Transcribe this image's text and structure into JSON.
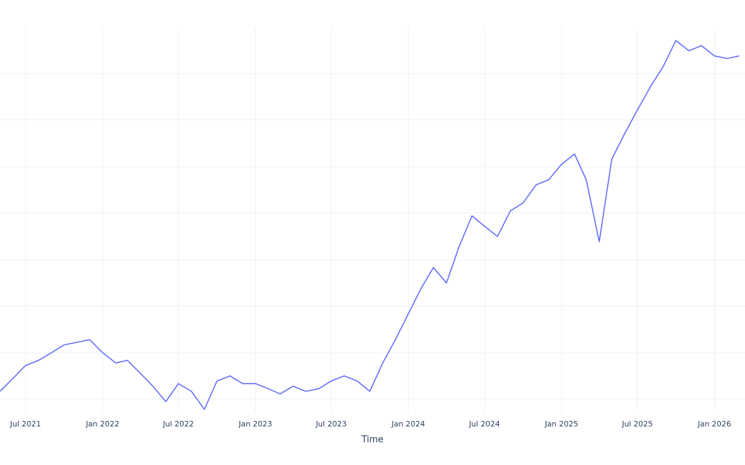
{
  "chart_data": {
    "type": "line",
    "title": "",
    "xlabel": "Time",
    "ylabel": "",
    "grid": true,
    "line_color": "#636efa",
    "x_ticks": [
      "Jul 2021",
      "Jan 2022",
      "Jul 2022",
      "Jan 2023",
      "Jul 2023",
      "Jan 2024",
      "Jul 2024",
      "Jan 2025",
      "Jul 2025",
      "Jan 2026"
    ],
    "x_range": [
      "2021-05-01",
      "2026-03-15"
    ],
    "series": [
      {
        "x": [
          "2021-05-01",
          "2021-06-01",
          "2021-07-01",
          "2021-08-01",
          "2021-09-01",
          "2021-10-01",
          "2021-11-01",
          "2021-12-01",
          "2022-01-01",
          "2022-02-01",
          "2022-03-01",
          "2022-04-01",
          "2022-05-01",
          "2022-06-01",
          "2022-07-01",
          "2022-08-01",
          "2022-09-01",
          "2022-10-01",
          "2022-11-01",
          "2022-12-01",
          "2023-01-01",
          "2023-02-01",
          "2023-03-01",
          "2023-04-01",
          "2023-05-01",
          "2023-06-01",
          "2023-07-01",
          "2023-08-01",
          "2023-09-01",
          "2023-10-01",
          "2023-11-01",
          "2023-12-01",
          "2024-01-01",
          "2024-02-01",
          "2024-03-01",
          "2024-04-01",
          "2024-05-01",
          "2024-06-01",
          "2024-07-01",
          "2024-08-01",
          "2024-09-01",
          "2024-10-01",
          "2024-11-01",
          "2024-12-01",
          "2025-01-01",
          "2025-02-01",
          "2025-03-01",
          "2025-04-01",
          "2025-05-01",
          "2025-06-01",
          "2025-07-01",
          "2025-08-01",
          "2025-09-01",
          "2025-10-01",
          "2025-11-01",
          "2025-12-01",
          "2026-01-01",
          "2026-02-01",
          "2026-03-01"
        ],
        "y": [
          0.1,
          0.15,
          0.2,
          0.22,
          0.25,
          0.28,
          0.29,
          0.3,
          0.25,
          0.21,
          0.22,
          0.17,
          0.12,
          0.06,
          0.13,
          0.1,
          0.03,
          0.14,
          0.16,
          0.13,
          0.13,
          0.11,
          0.09,
          0.12,
          0.1,
          0.11,
          0.14,
          0.16,
          0.14,
          0.1,
          0.21,
          0.3,
          0.4,
          0.5,
          0.58,
          0.52,
          0.66,
          0.78,
          0.74,
          0.7,
          0.8,
          0.83,
          0.9,
          0.92,
          0.98,
          1.02,
          0.92,
          0.68,
          1.0,
          1.1,
          1.19,
          1.28,
          1.36,
          1.46,
          1.42,
          1.44,
          1.4,
          1.39,
          1.4
        ]
      }
    ],
    "y_range": [
      0.02,
      1.51
    ]
  }
}
